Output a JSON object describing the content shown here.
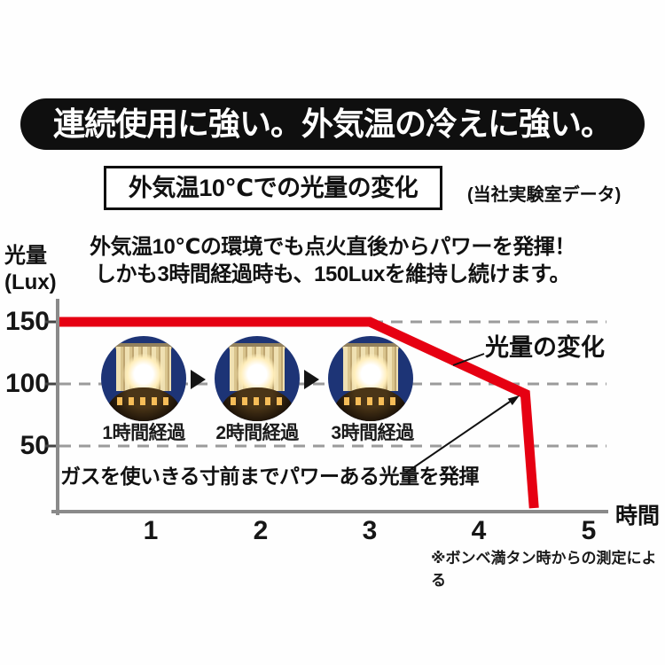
{
  "colors": {
    "accent_red": "#e60012",
    "photo_navy": "#1d3476",
    "axis_gray": "#8a8a8a",
    "grid_gray": "#9b9b9b",
    "banner_black": "#0f0f0f"
  },
  "banner": {
    "text": "連続使用に強い。外気温の冷えに強い。"
  },
  "title": {
    "boxed_text": "外気温10℃での光量の変化",
    "note": "(当社実験室データ)"
  },
  "lead": {
    "line1": "外気温10℃の環境でも点火直後からパワーを発揮！",
    "line2": "しかも3時間経過時も、150Luxを維持し続けます。"
  },
  "photos": {
    "items": [
      {
        "label": "1時間経過"
      },
      {
        "label": "2時間経過"
      },
      {
        "label": "3時間経過"
      }
    ]
  },
  "chart_data": {
    "type": "line",
    "title": "外気温10℃での光量の変化",
    "xlabel": "時間",
    "ylabel": [
      "光量",
      "(Lux)"
    ],
    "x_ticks": [
      "1",
      "2",
      "3",
      "4",
      "5"
    ],
    "y_ticks": [
      "150",
      "100",
      "50"
    ],
    "xlim": [
      0,
      5.2
    ],
    "ylim": [
      0,
      175
    ],
    "grid": "horizontal-dashed",
    "legend_position": "annotation-on-line",
    "series": [
      {
        "name": "光量の変化",
        "color": "#e60012",
        "points_time_lux": [
          [
            0,
            150
          ],
          [
            3,
            150
          ],
          [
            4.42,
            92
          ],
          [
            4.5,
            0
          ]
        ]
      }
    ],
    "annotation": "ガスを使いきる寸前までパワーある光量を発揮",
    "footnote": "※ボンベ満タン時からの測定による"
  }
}
